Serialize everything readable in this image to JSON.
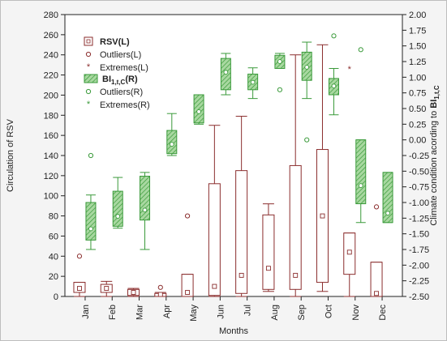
{
  "chart_data": {
    "type": "box",
    "xlabel": "Months",
    "ylabel_left": "Circulation of RSV",
    "ylabel_right_prefix": "Climate condition acording to ",
    "ylabel_right_symbol": "BI",
    "ylabel_right_subscript": "1,t,C",
    "categories": [
      "Jan",
      "Feb",
      "Mar",
      "Apr",
      "May",
      "Jun",
      "Jul",
      "Aug",
      "Sep",
      "Oct",
      "Nov",
      "Dec"
    ],
    "y_left": {
      "min": 0,
      "max": 280,
      "ticks": [
        0,
        20,
        40,
        60,
        80,
        100,
        120,
        140,
        160,
        180,
        200,
        220,
        240,
        260,
        280
      ]
    },
    "y_right": {
      "min": -2.5,
      "max": 2.0,
      "ticks": [
        "-2.50",
        "-2.25",
        "-2.00",
        "-1.75",
        "-1.50",
        "-1.25",
        "-1.00",
        "-0.75",
        "-0.50",
        "-0.25",
        "0.00",
        "0.25",
        "0.50",
        "0.75",
        "1.00",
        "1.25",
        "1.50",
        "1.75",
        "2.00"
      ]
    },
    "grid": false,
    "legend_position": "top-left",
    "legend": {
      "rsv_label": "RSV(L)",
      "outliers_l": "Outliers(L)",
      "extremes_l": "Extremes(L)",
      "bi_symbol": "BI",
      "bi_subscript": "1,t,C",
      "bi_suffix": "(R)",
      "outliers_r": "Outliers(R)",
      "extremes_r": "Extremes(R)"
    },
    "colors": {
      "rsv": "#8b2e2e",
      "bi": "#3a9a3a",
      "bi_fill": "#7cc07c"
    },
    "series": [
      {
        "name": "RSV(L)",
        "axis": "left",
        "boxes": [
          {
            "median": 8,
            "q1": 4,
            "q3": 14,
            "min": 0,
            "max": 14,
            "outliers": [
              40
            ],
            "extremes": []
          },
          {
            "median": 8,
            "q1": 4,
            "q3": 12,
            "min": 0,
            "max": 15,
            "outliers": [],
            "extremes": []
          },
          {
            "median": 4,
            "q1": 1,
            "q3": 7,
            "min": 0,
            "max": 8,
            "outliers": [],
            "extremes": []
          },
          {
            "median": 2,
            "q1": 0,
            "q3": 3,
            "min": 0,
            "max": 4,
            "outliers": [
              9
            ],
            "extremes": []
          },
          {
            "median": 4,
            "q1": 0,
            "q3": 22,
            "min": 0,
            "max": 22,
            "outliers": [
              80
            ],
            "extremes": []
          },
          {
            "median": 10,
            "q1": 1,
            "q3": 112,
            "min": 0,
            "max": 170,
            "outliers": [],
            "extremes": []
          },
          {
            "median": 21,
            "q1": 3,
            "q3": 125,
            "min": 0,
            "max": 179,
            "outliers": [],
            "extremes": []
          },
          {
            "median": 28,
            "q1": 7,
            "q3": 81,
            "min": 5,
            "max": 92,
            "outliers": [],
            "extremes": []
          },
          {
            "median": 21,
            "q1": 7,
            "q3": 130,
            "min": 0,
            "max": 240,
            "outliers": [],
            "extremes": []
          },
          {
            "median": 80,
            "q1": 14,
            "q3": 146,
            "min": 5,
            "max": 250,
            "outliers": [],
            "extremes": []
          },
          {
            "median": 44,
            "q1": 22,
            "q3": 63,
            "min": 0,
            "max": 63,
            "outliers": [],
            "extremes": [
              226
            ]
          },
          {
            "median": 3,
            "q1": 0,
            "q3": 34,
            "min": 0,
            "max": 34,
            "outliers": [
              89
            ],
            "extremes": []
          }
        ]
      },
      {
        "name": "BI(R)",
        "axis": "right",
        "boxes": [
          {
            "median": -1.42,
            "q1": -1.6,
            "q3": -1.0,
            "min": -1.75,
            "max": -0.88,
            "outliers": [
              -0.25
            ],
            "extremes": []
          },
          {
            "median": -1.22,
            "q1": -1.38,
            "q3": -0.82,
            "min": -1.41,
            "max": -0.6,
            "outliers": [],
            "extremes": []
          },
          {
            "median": -1.12,
            "q1": -1.28,
            "q3": -0.58,
            "min": -1.75,
            "max": -0.52,
            "outliers": [],
            "extremes": []
          },
          {
            "median": -0.07,
            "q1": -0.22,
            "q3": 0.15,
            "min": -0.25,
            "max": 0.42,
            "outliers": [],
            "extremes": []
          },
          {
            "median": 0.45,
            "q1": 0.27,
            "q3": 0.72,
            "min": 0.25,
            "max": 0.72,
            "outliers": [],
            "extremes": []
          },
          {
            "median": 1.08,
            "q1": 0.8,
            "q3": 1.3,
            "min": 0.72,
            "max": 1.38,
            "outliers": [],
            "extremes": []
          },
          {
            "median": 0.92,
            "q1": 0.8,
            "q3": 1.05,
            "min": 0.66,
            "max": 1.15,
            "outliers": [],
            "extremes": []
          },
          {
            "median": 1.25,
            "q1": 1.14,
            "q3": 1.35,
            "min": 1.14,
            "max": 1.38,
            "outliers": [
              0.8
            ],
            "extremes": []
          },
          {
            "median": 1.16,
            "q1": 0.95,
            "q3": 1.4,
            "min": 0.66,
            "max": 1.56,
            "outliers": [
              0.0
            ],
            "extremes": []
          },
          {
            "median": 0.86,
            "q1": 0.72,
            "q3": 0.98,
            "min": 0.4,
            "max": 1.14,
            "outliers": [
              1.66
            ],
            "extremes": []
          },
          {
            "median": -0.73,
            "q1": -1.02,
            "q3": -0.0,
            "min": -1.32,
            "max": -0.0,
            "outliers": [
              1.44
            ],
            "extremes": []
          },
          {
            "median": -1.17,
            "q1": -1.32,
            "q3": -0.52,
            "min": -1.32,
            "max": -0.52,
            "outliers": [],
            "extremes": []
          }
        ]
      }
    ]
  }
}
